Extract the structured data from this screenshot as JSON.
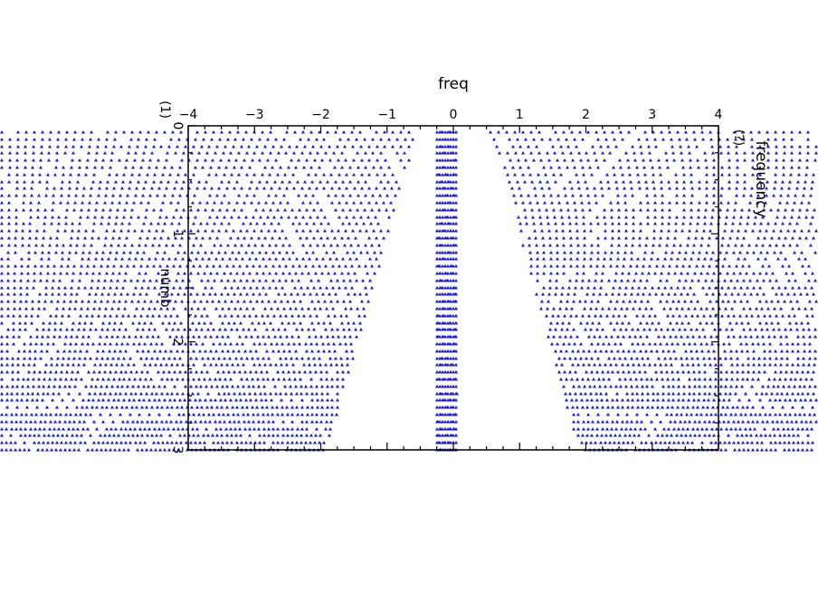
{
  "chart_data": {
    "type": "scatter",
    "title": "",
    "xlabel": "freq",
    "ylabel_left": "numb",
    "ylabel_right": "frequency",
    "left_axis_label": "(1)",
    "right_axis_label": "(?)",
    "xlim": [
      -4,
      4
    ],
    "ylim": [
      0,
      3
    ],
    "x_ticks": [
      "-4",
      "-3",
      "-2",
      "-1",
      "0",
      "1",
      "2",
      "3",
      "4"
    ],
    "y_ticks": [
      "0",
      "1",
      "2",
      "3"
    ],
    "marker_color": "#1414e6",
    "axis_color": "#000000",
    "marker": "triangle",
    "description_of_values": "A dense lattice of small triangle markers spread over the plot; a vertical band of points sits at freq ≈ 0, with sparser fan-shaped bands widening from top to bottom toward ±4."
  }
}
